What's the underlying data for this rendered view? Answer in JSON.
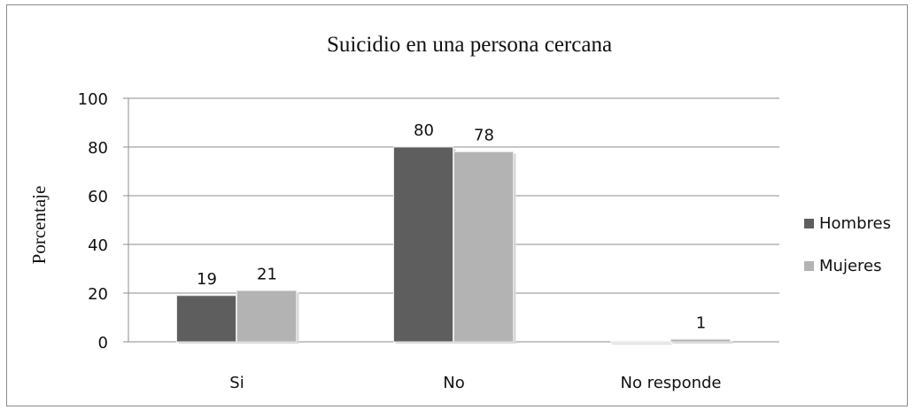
{
  "chart_data": {
    "type": "bar",
    "title": "Suicidio en una persona cercana",
    "xlabel": "",
    "ylabel": "Porcentaje",
    "ylim": [
      0,
      100
    ],
    "yticks": [
      0,
      20,
      40,
      60,
      80,
      100
    ],
    "categories": [
      "Si",
      "No",
      "No responde"
    ],
    "series": [
      {
        "name": "Hombres",
        "color": "#5e5e5e",
        "values": [
          19,
          80,
          0
        ],
        "labels": [
          "19",
          "80",
          ""
        ]
      },
      {
        "name": "Mujeres",
        "color": "#b3b3b3",
        "values": [
          21,
          78,
          1
        ],
        "labels": [
          "21",
          "78",
          "1"
        ]
      }
    ],
    "grid": true,
    "legend_position": "right"
  }
}
